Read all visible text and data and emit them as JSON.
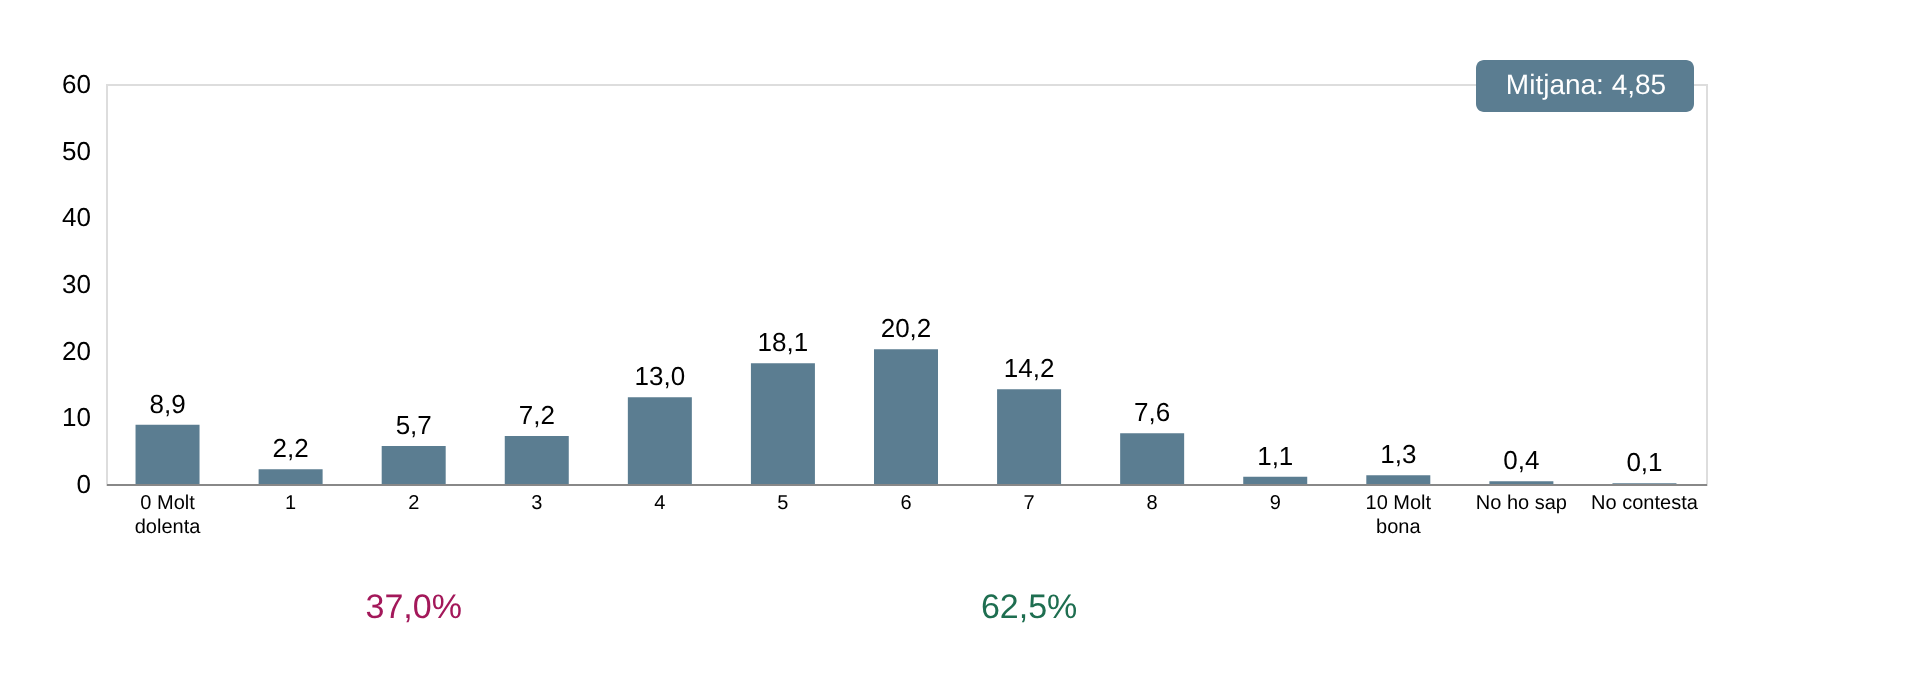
{
  "chart_data": {
    "type": "bar",
    "categories": [
      "0 Molt\ndolenta",
      "1",
      "2",
      "3",
      "4",
      "5",
      "6",
      "7",
      "8",
      "9",
      "10 Molt\nbona",
      "No ho sap",
      "No contesta"
    ],
    "values": [
      8.9,
      2.2,
      5.7,
      7.2,
      13.0,
      18.1,
      20.2,
      14.2,
      7.6,
      1.1,
      1.3,
      0.4,
      0.1
    ],
    "value_labels": [
      "8,9",
      "2,2",
      "5,7",
      "7,2",
      "13,0",
      "18,1",
      "20,2",
      "14,2",
      "7,6",
      "1,1",
      "1,3",
      "0,4",
      "0,1"
    ],
    "color": "#5b7d91",
    "ylim": [
      0,
      60
    ],
    "yticks": [
      0,
      10,
      20,
      30,
      40,
      50,
      60
    ],
    "grid": false,
    "annotations": [
      "Mitjana: 4,85",
      "37,0%",
      "62,5%"
    ]
  }
}
